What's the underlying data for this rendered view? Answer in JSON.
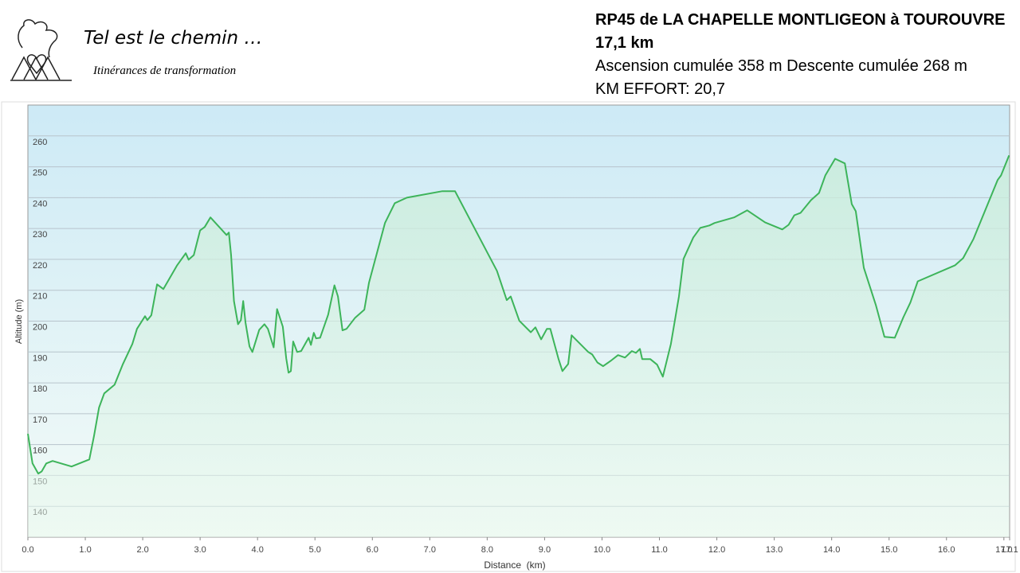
{
  "header": {
    "logo_title": "Tel est le chemin …",
    "logo_subtitle": "Itinérances de transformation",
    "route": "RP45 de LA CHAPELLE MONTLIGEON à TOUROUVRE",
    "distance": "17,1 km",
    "elevation": "Ascension cumulée 358 m Descente cumulée 268 m",
    "effort": "KM EFFORT: 20,7"
  },
  "chart_data": {
    "type": "line",
    "x_label": "Distance  (km)",
    "y_label": "Altitude (m)",
    "color": "#3db45a",
    "grid": true,
    "xlim": [
      0,
      17.1
    ],
    "ylim": [
      130,
      270
    ],
    "xticks": [
      {
        "value": 0,
        "label": "0.0"
      },
      {
        "value": 1,
        "label": "1.0"
      },
      {
        "value": 2,
        "label": "2.0"
      },
      {
        "value": 3,
        "label": "3.0"
      },
      {
        "value": 4,
        "label": "4.0"
      },
      {
        "value": 5,
        "label": "5.0"
      },
      {
        "value": 6,
        "label": "6.0"
      },
      {
        "value": 7,
        "label": "7.0"
      },
      {
        "value": 8,
        "label": "8.0"
      },
      {
        "value": 9,
        "label": "9.0"
      },
      {
        "value": 10,
        "label": "10.0"
      },
      {
        "value": 11,
        "label": "11.0"
      },
      {
        "value": 12,
        "label": "12.0"
      },
      {
        "value": 13,
        "label": "13.0"
      },
      {
        "value": 14,
        "label": "14.0"
      },
      {
        "value": 15,
        "label": "15.0"
      },
      {
        "value": 16,
        "label": "16.0"
      },
      {
        "value": 17,
        "label": "17.0"
      },
      17.1
    ],
    "yticks": [
      140,
      150,
      160,
      170,
      180,
      190,
      200,
      210,
      220,
      230,
      240,
      250,
      260
    ],
    "x": [
      0,
      0.08,
      0.18,
      0.24,
      0.32,
      0.43,
      0.76,
      1.07,
      1.15,
      1.24,
      1.33,
      1.51,
      1.65,
      1.82,
      1.9,
      2.04,
      2.08,
      2.15,
      2.25,
      2.36,
      2.6,
      2.75,
      2.8,
      2.89,
      3.0,
      3.08,
      3.18,
      3.46,
      3.5,
      3.54,
      3.59,
      3.66,
      3.71,
      3.75,
      3.79,
      3.86,
      3.91,
      4.03,
      4.12,
      4.18,
      4.28,
      4.34,
      4.44,
      4.5,
      4.54,
      4.58,
      4.62,
      4.69,
      4.76,
      4.89,
      4.93,
      4.98,
      5.02,
      5.09,
      5.23,
      5.34,
      5.4,
      5.48,
      5.55,
      5.7,
      5.86,
      5.94,
      6.22,
      6.39,
      6.6,
      7.22,
      7.44,
      8.17,
      8.34,
      8.41,
      8.56,
      8.76,
      8.84,
      8.94,
      9.04,
      9.1,
      9.24,
      9.31,
      9.41,
      9.47,
      9.76,
      9.83,
      9.92,
      10.02,
      10.17,
      10.28,
      10.4,
      10.52,
      10.59,
      10.66,
      10.7,
      10.84,
      10.96,
      11.06,
      11.2,
      11.34,
      11.42,
      11.59,
      11.71,
      11.87,
      11.96,
      12.3,
      12.53,
      12.84,
      13.14,
      13.25,
      13.35,
      13.46,
      13.64,
      13.78,
      13.89,
      14.06,
      14.23,
      14.35,
      14.42,
      14.56,
      14.77,
      14.92,
      15.1,
      15.25,
      15.37,
      15.5,
      16.15,
      16.29,
      16.47,
      16.89,
      16.95,
      17.09
    ],
    "values": [
      163.5,
      153.9,
      150.6,
      151.3,
      153.9,
      154.7,
      152.9,
      155.2,
      162.7,
      172,
      176.6,
      179.4,
      185.9,
      192.6,
      197.5,
      201.6,
      200.3,
      201.9,
      211.9,
      210.4,
      218.1,
      222,
      219.9,
      221.4,
      229.4,
      230.5,
      233.6,
      227.9,
      228.7,
      221.4,
      206.5,
      199,
      200.3,
      206.5,
      199.5,
      191.8,
      190,
      197.2,
      199,
      197.5,
      191.5,
      203.9,
      198.2,
      187.9,
      183.3,
      183.8,
      193.4,
      190,
      190.3,
      194.6,
      192.3,
      196.2,
      194.4,
      194.6,
      202.1,
      211.6,
      208,
      197,
      197.5,
      201.1,
      203.7,
      212.4,
      231.8,
      238.2,
      240,
      242.1,
      242.1,
      216.3,
      206.8,
      208,
      200.1,
      196.4,
      198,
      194.1,
      197.5,
      197.5,
      187.9,
      183.8,
      186.1,
      195.4,
      190,
      189.2,
      186.6,
      185.4,
      187.4,
      189,
      188.2,
      190.3,
      189.7,
      191,
      187.7,
      187.7,
      185.9,
      182,
      192.6,
      208,
      220.2,
      227.1,
      230.2,
      231,
      231.8,
      233.6,
      235.9,
      232,
      229.7,
      231.2,
      234.3,
      235.1,
      239.2,
      241.5,
      247.2,
      252.6,
      251.1,
      237.9,
      235.6,
      217.3,
      205.2,
      194.9,
      194.6,
      201.3,
      206,
      212.9,
      218.1,
      220.4,
      226.6,
      245.7,
      247.2,
      253.7
    ]
  }
}
